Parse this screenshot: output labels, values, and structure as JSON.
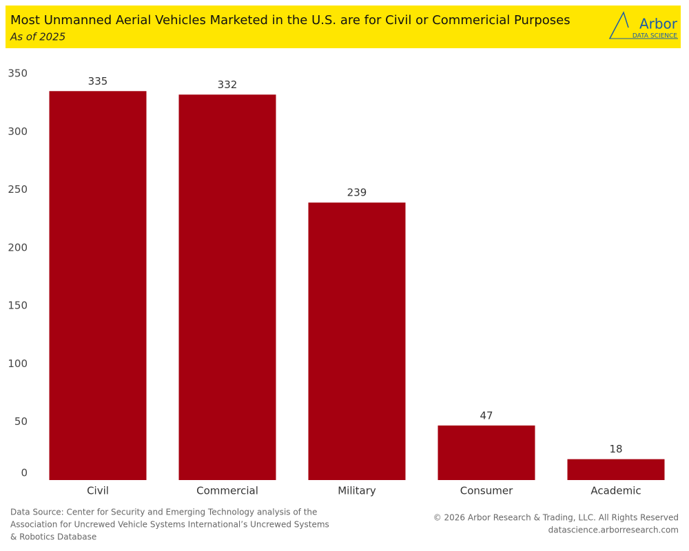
{
  "chart_data": {
    "type": "bar",
    "title": "Most Unmanned Aerial Vehicles Marketed in the U.S. are for Civil or Commericial Purposes",
    "subtitle": "As of 2025",
    "categories": [
      "Civil",
      "Commercial",
      "Military",
      "Consumer",
      "Academic"
    ],
    "values": [
      335,
      332,
      239,
      47,
      18
    ],
    "color": "#a50010",
    "ylim": [
      0,
      350
    ],
    "yticks": [
      0,
      50,
      100,
      150,
      200,
      250,
      300,
      350
    ],
    "grid": false
  },
  "logo": {
    "name": "Arbor",
    "tagline": "DATA SCIENCE"
  },
  "footer": {
    "source": [
      "Data Source: Center for Security and Emerging Technology analysis of the",
      "Association for Uncrewed Vehicle Systems International’s Uncrewed Systems",
      "& Robotics Database"
    ],
    "rights": [
      "© 2026 Arbor Research & Trading, LLC. All Rights Reserved",
      "datascience.arborresearch.com"
    ]
  }
}
